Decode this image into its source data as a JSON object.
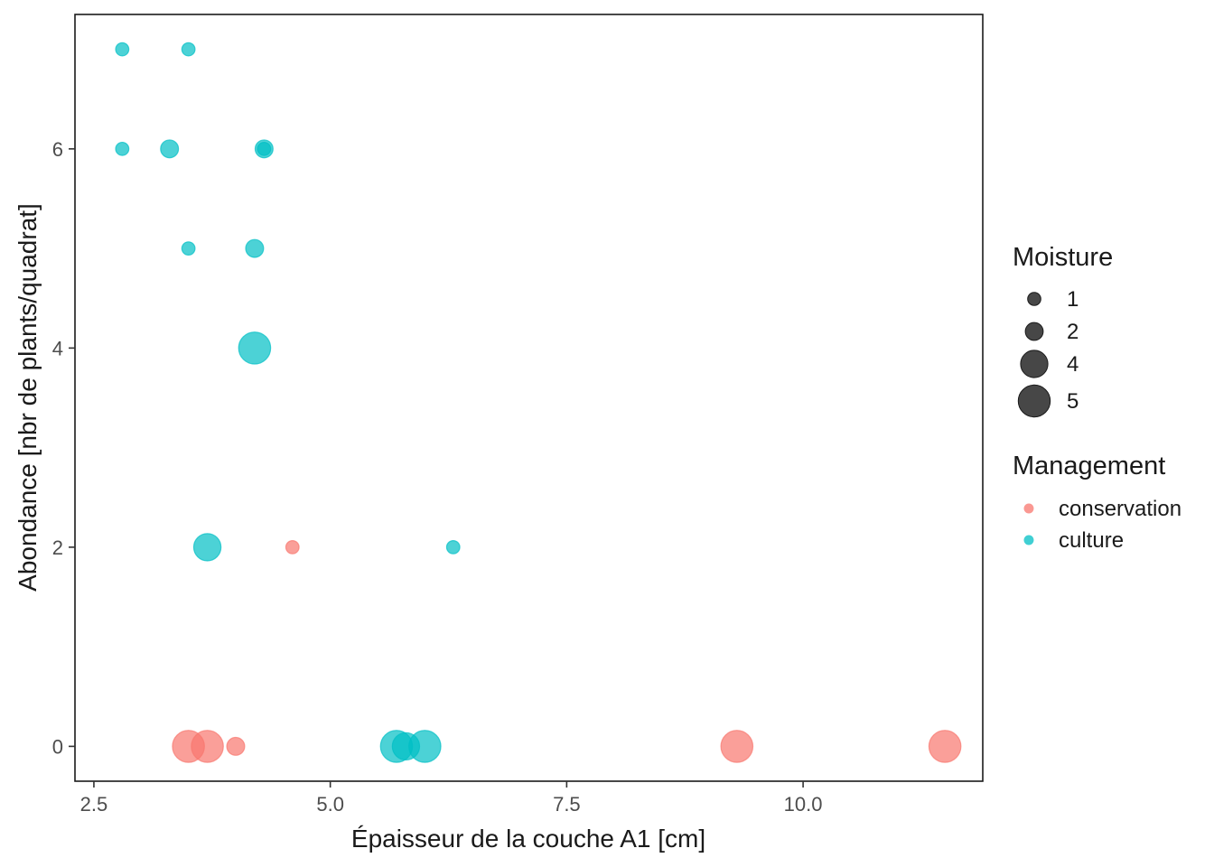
{
  "chart_data": {
    "type": "scatter",
    "title": "",
    "xlabel": "Épaisseur de la couche A1 [cm]",
    "ylabel": "Abondance [nbr de plants/quadrat]",
    "xlim": [
      2.3,
      11.9
    ],
    "ylim": [
      -0.35,
      7.35
    ],
    "x_ticks": [
      2.5,
      5.0,
      7.5,
      10.0
    ],
    "x_tick_labels": [
      "2.5",
      "5.0",
      "7.5",
      "10.0"
    ],
    "y_ticks": [
      0,
      2,
      4,
      6
    ],
    "y_tick_labels": [
      "0",
      "2",
      "4",
      "6"
    ],
    "grid": false,
    "legend_position": "right",
    "size_legend": {
      "title": "Moisture",
      "entries": [
        {
          "label": "1",
          "value": 1
        },
        {
          "label": "2",
          "value": 2
        },
        {
          "label": "4",
          "value": 4
        },
        {
          "label": "5",
          "value": 5
        }
      ]
    },
    "color_legend": {
      "title": "Management",
      "entries": [
        {
          "label": "conservation",
          "color": "#F8766D"
        },
        {
          "label": "culture",
          "color": "#00BFC4"
        }
      ]
    },
    "series": [
      {
        "name": "conservation",
        "color": "#F8766D",
        "points": [
          {
            "x": 3.5,
            "y": 0,
            "moisture": 5
          },
          {
            "x": 3.7,
            "y": 0,
            "moisture": 5
          },
          {
            "x": 4.0,
            "y": 0,
            "moisture": 2
          },
          {
            "x": 9.3,
            "y": 0,
            "moisture": 5
          },
          {
            "x": 11.5,
            "y": 0,
            "moisture": 5
          },
          {
            "x": 4.6,
            "y": 2,
            "moisture": 1
          }
        ]
      },
      {
        "name": "culture",
        "color": "#00BFC4",
        "points": [
          {
            "x": 2.8,
            "y": 7,
            "moisture": 1
          },
          {
            "x": 3.5,
            "y": 7,
            "moisture": 1
          },
          {
            "x": 2.8,
            "y": 6,
            "moisture": 1
          },
          {
            "x": 3.3,
            "y": 6,
            "moisture": 2
          },
          {
            "x": 4.3,
            "y": 6,
            "moisture": 2
          },
          {
            "x": 4.3,
            "y": 6,
            "moisture": 1
          },
          {
            "x": 3.5,
            "y": 5,
            "moisture": 1
          },
          {
            "x": 4.2,
            "y": 5,
            "moisture": 2
          },
          {
            "x": 4.2,
            "y": 4,
            "moisture": 5
          },
          {
            "x": 3.7,
            "y": 2,
            "moisture": 4
          },
          {
            "x": 6.3,
            "y": 2,
            "moisture": 1
          },
          {
            "x": 5.7,
            "y": 0,
            "moisture": 5
          },
          {
            "x": 5.8,
            "y": 0,
            "moisture": 4
          },
          {
            "x": 6.0,
            "y": 0,
            "moisture": 5
          }
        ]
      }
    ]
  }
}
